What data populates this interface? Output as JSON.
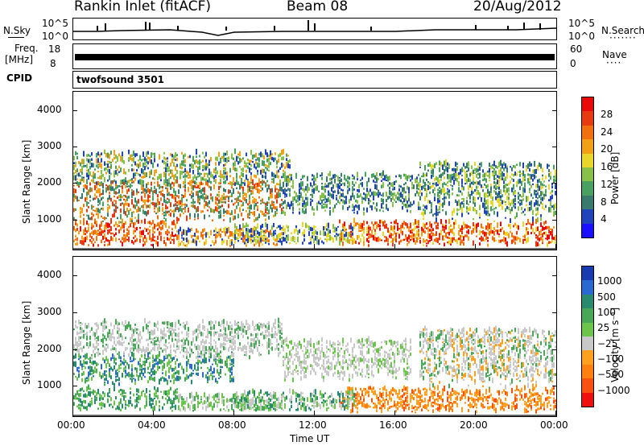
{
  "header": {
    "station": "Rankin Inlet (fitACF)",
    "beam": "Beam 08",
    "date": "20/Aug/2012"
  },
  "panels": {
    "nsky_label": "N.Sky",
    "nsky_top": "10^5",
    "nsky_bot": "10^0",
    "nsearch_label": "N.Search",
    "freq_label": "Freq.",
    "freq_unit": "[MHz]",
    "freq_top": "18",
    "freq_bot": "8",
    "nave_top": "60",
    "nave_bot": "0",
    "nave_label": "Nave",
    "cpid_label": "CPID",
    "cpid_value": "twofsound 3501"
  },
  "chart_data": [
    {
      "type": "heatmap",
      "xlabel": "Time UT",
      "ylabel": "Slant Range [km]",
      "x_ticks": [
        "00:00",
        "04:00",
        "08:00",
        "12:00",
        "16:00",
        "20:00",
        "00:00"
      ],
      "y_ticks": [
        1000,
        2000,
        3000,
        4000
      ],
      "ylim": [
        180,
        4500
      ],
      "colorbar": {
        "label": "Power [dB]",
        "ticks": [
          "4",
          "8",
          "12",
          "16",
          "20",
          "24",
          "28"
        ],
        "colors": [
          "#1a10ff",
          "#2244bb",
          "#3a7a6e",
          "#4aa060",
          "#88c04a",
          "#e8d62a",
          "#f2a018",
          "#f07010",
          "#e83a10",
          "#e80a0a"
        ]
      }
    },
    {
      "type": "heatmap",
      "xlabel": "Time UT",
      "ylabel": "Slant Range [km]",
      "x_ticks": [
        "00:00",
        "04:00",
        "08:00",
        "12:00",
        "16:00",
        "20:00",
        "00:00"
      ],
      "y_ticks": [
        1000,
        2000,
        3000,
        4000
      ],
      "ylim": [
        180,
        4500
      ],
      "colorbar": {
        "label": "Velocity [m s⁻¹]",
        "ticks": [
          "1000",
          "500",
          "100",
          "25",
          "−25",
          "−100",
          "−500",
          "−1000"
        ],
        "colors": [
          "#1a3ab0",
          "#2a6ad0",
          "#2a8a70",
          "#48a858",
          "#6cc44c",
          "#c8c8c8",
          "#ffa020",
          "#ff8010",
          "#f85010",
          "#ee1010"
        ]
      }
    }
  ]
}
